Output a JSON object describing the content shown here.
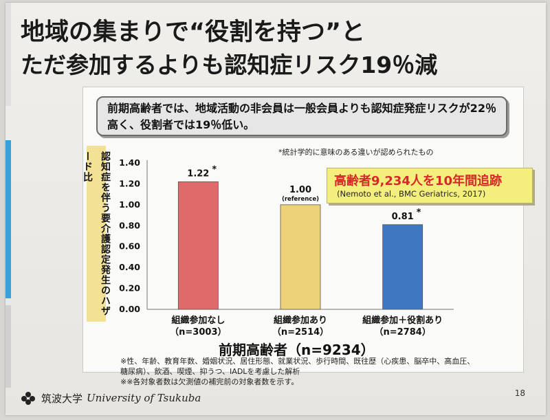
{
  "slide": {
    "title_line1": "地域の集まりで“役割を持つ”と",
    "title_line2": "ただ参加するよりも認知症リスク19％減",
    "summary": "前期高齢者では、地域活動の非会員は一般会員よりも認知症発症リスクが22％高く、役割者では19％低い。",
    "note_significance": "*統計学的に意味のある違いが認められたもの",
    "highlight_main": "高齢者9,234人を10年間追跡",
    "highlight_citation": "(Nemoto et al., BMC Geriatrics, 2017)",
    "x_caption": "前期高齢者（n=9234）",
    "footnote1": "※性、年齢、教育年数、婚姻状況、居住形態、就業状況、歩行時間、既往歴（心疾患、脳卒中、高血圧、糖尿病）、飲酒、喫煙、抑うつ、IADLを考慮した解析",
    "footnote2": "※※各対象者数は欠測値の補完前の対象者数を示す。",
    "footer_jp": "筑波大学",
    "footer_en": "University of Tsukuba",
    "page_number": "18"
  },
  "chart_data": {
    "type": "bar",
    "ylabel": "認知症を伴う要介護認定発生のハザード比",
    "ylim": [
      0,
      1.4
    ],
    "yticks": [
      "0.00",
      "0.20",
      "0.40",
      "0.60",
      "0.80",
      "1.00",
      "1.20",
      "1.40"
    ],
    "grid": false,
    "categories": [
      {
        "line1": "組織参加なし",
        "line2": "（n=3003）"
      },
      {
        "line1": "組織参加あり",
        "line2": "（n=2514）"
      },
      {
        "line1": "組織参加＋役割あり",
        "line2": "（n=2784）"
      }
    ],
    "values": [
      1.22,
      1.0,
      0.81
    ],
    "value_labels": [
      "1.22",
      "1.00",
      "0.81"
    ],
    "markers": [
      "*",
      "",
      "*"
    ],
    "sublabels": [
      "",
      "(reference)",
      ""
    ],
    "colors": [
      "#e06a6a",
      "#edd27a",
      "#3f78c0"
    ]
  }
}
